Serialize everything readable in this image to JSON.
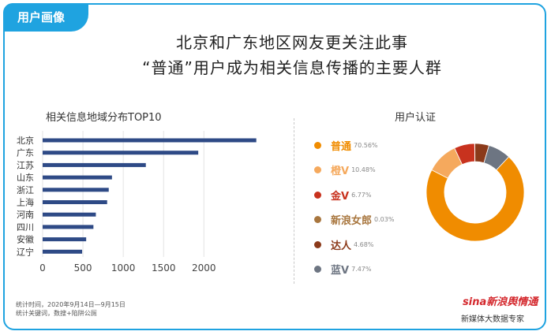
{
  "badge": "用户画像",
  "title_line1": "北京和广东地区网友更关注此事",
  "title_line2": "“普通”用户成为相关信息传播的主要人群",
  "footer_line1": "统计时间，2020年9月14日—9月15日",
  "footer_line2": "统计关键词，数搜+陷阱公厕",
  "brand_logo": "sina新浪舆情通",
  "brand_sub": "新媒体大数据专家",
  "colors": {
    "frame": "#1fa3e0",
    "bar": "#2e4a86",
    "accent": "#d4282d"
  },
  "chart_data": [
    {
      "type": "bar",
      "orientation": "horizontal",
      "title": "相关信息地域分布TOP10",
      "categories": [
        "北京",
        "广东",
        "江苏",
        "山东",
        "浙江",
        "上海",
        "河南",
        "四川",
        "安徽",
        "辽宁"
      ],
      "values": [
        2650,
        1930,
        1280,
        860,
        820,
        800,
        660,
        630,
        540,
        490
      ],
      "xticks": [
        0,
        500,
        1000,
        1500,
        2000
      ],
      "xlim": [
        0,
        2800
      ],
      "grid": true
    },
    {
      "type": "pie",
      "donut": true,
      "title": "用户认证",
      "labels": [
        "普通",
        "橙V",
        "金V",
        "新浪女郎",
        "达人",
        "蓝V"
      ],
      "values": [
        70.56,
        10.48,
        6.77,
        0.03,
        4.68,
        7.47
      ],
      "value_labels": [
        "70.56%",
        "10.48%",
        "6.77%",
        "0.03%",
        "4.68%",
        "7.47%"
      ],
      "colors": [
        "#f08c00",
        "#f5a95d",
        "#c8321e",
        "#a8763e",
        "#8b3a1a",
        "#6d7582"
      ],
      "legend": "left"
    }
  ]
}
